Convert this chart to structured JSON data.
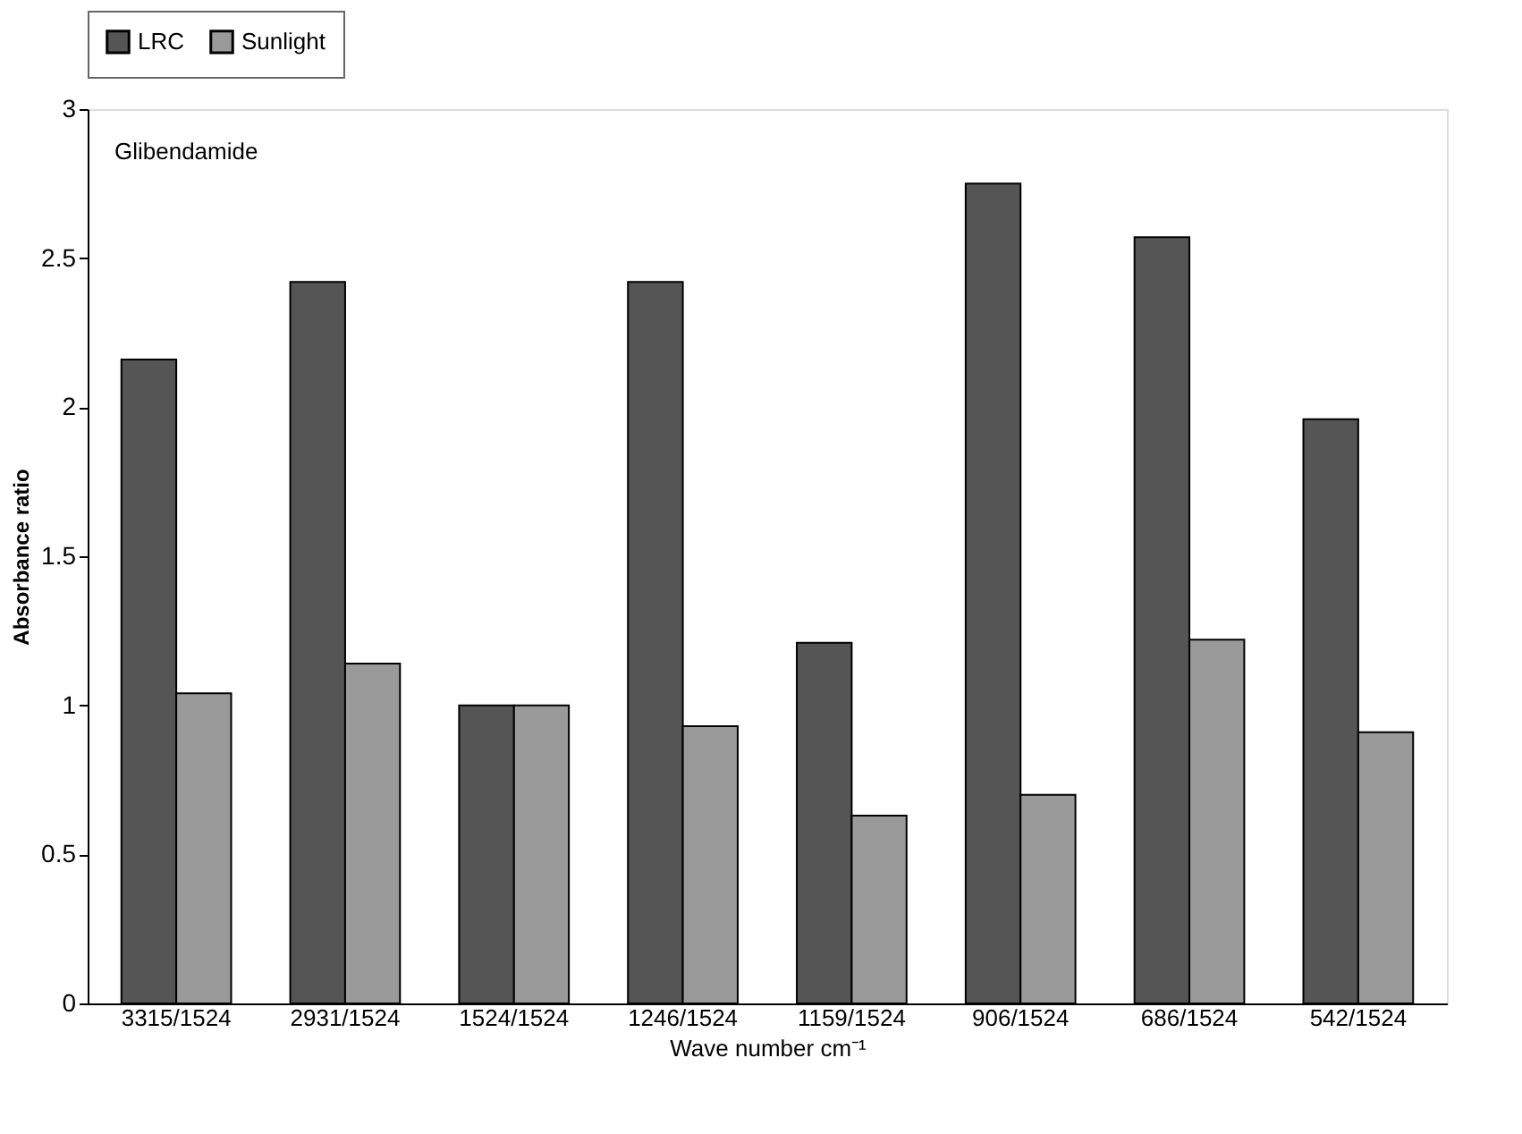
{
  "chart_data": {
    "type": "bar",
    "annotations": [
      "Glibendamide"
    ],
    "xlabel": "Wave number cm⁻¹",
    "ylabel": "Absorbance ratio",
    "categories": [
      "3315/1524",
      "2931/1524",
      "1524/1524",
      "1246/1524",
      "1159/1524",
      "906/1524",
      "686/1524",
      "542/1524"
    ],
    "series": [
      {
        "name": "LRC",
        "color": "#555555",
        "values": [
          2.16,
          2.42,
          1.0,
          2.42,
          1.21,
          2.75,
          2.57,
          1.96
        ]
      },
      {
        "name": "Sunlight",
        "color": "#9a9a9a",
        "values": [
          1.04,
          1.14,
          1.0,
          0.93,
          0.63,
          0.7,
          1.22,
          0.91
        ]
      }
    ],
    "ylim": [
      0,
      3
    ],
    "yticks": [
      0,
      0.5,
      1,
      1.5,
      2,
      2.5,
      3
    ],
    "legend": "top",
    "grid": false
  }
}
